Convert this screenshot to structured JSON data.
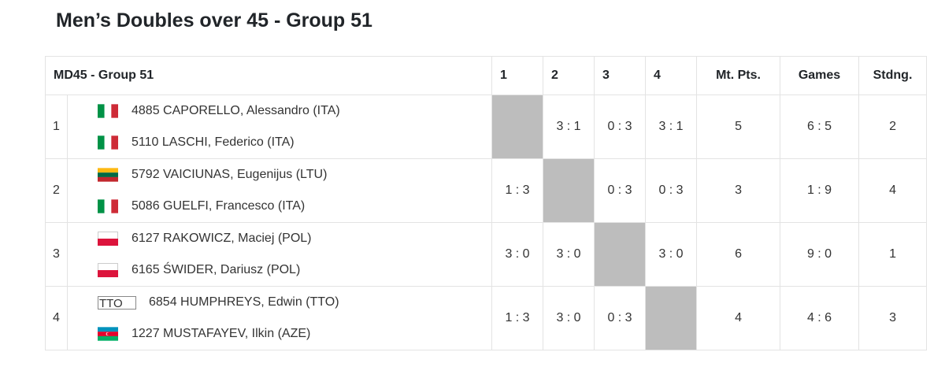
{
  "title": "Men’s Doubles over 45 - Group 51",
  "table": {
    "header": [
      "MD45 - Group 51",
      "1",
      "2",
      "3",
      "4",
      "Mt. Pts.",
      "Games",
      "Stdng."
    ],
    "rows": [
      {
        "position": "1",
        "players": [
          "4885 CAPORELLO, Alessandro (ITA)",
          "5110 LASCHI, Federico (ITA)"
        ],
        "results": [
          null,
          "3 : 1",
          "0 : 3",
          "3 : 1"
        ],
        "points": "5",
        "games": "6 : 5",
        "standing": "2"
      },
      {
        "position": "2",
        "players": [
          "5792 VAICIUNAS, Eugenijus (LTU)",
          "5086 GUELFI, Francesco (ITA)"
        ],
        "results": [
          "1 : 3",
          null,
          "0 : 3",
          "0 : 3"
        ],
        "points": "3",
        "games": "1 : 9",
        "standing": "4"
      },
      {
        "position": "3",
        "players": [
          "6127 RAKOWICZ, Maciej (POL)",
          "6165 ŚWIDER, Dariusz (POL)"
        ],
        "results": [
          "3 : 0",
          "3 : 0",
          null,
          "3 : 0"
        ],
        "points": "6",
        "games": "9 : 0",
        "standing": "1"
      },
      {
        "position": "4",
        "flag_alt": "TTO",
        "players": [
          "6854 HUMPHREYS, Edwin (TTO)",
          "1227 MUSTAFAYEV, Ilkin (AZE)"
        ],
        "results": [
          "1 : 3",
          "3 : 0",
          "0 : 3",
          null
        ],
        "points": "4",
        "games": "4 : 6",
        "standing": "3"
      }
    ]
  }
}
